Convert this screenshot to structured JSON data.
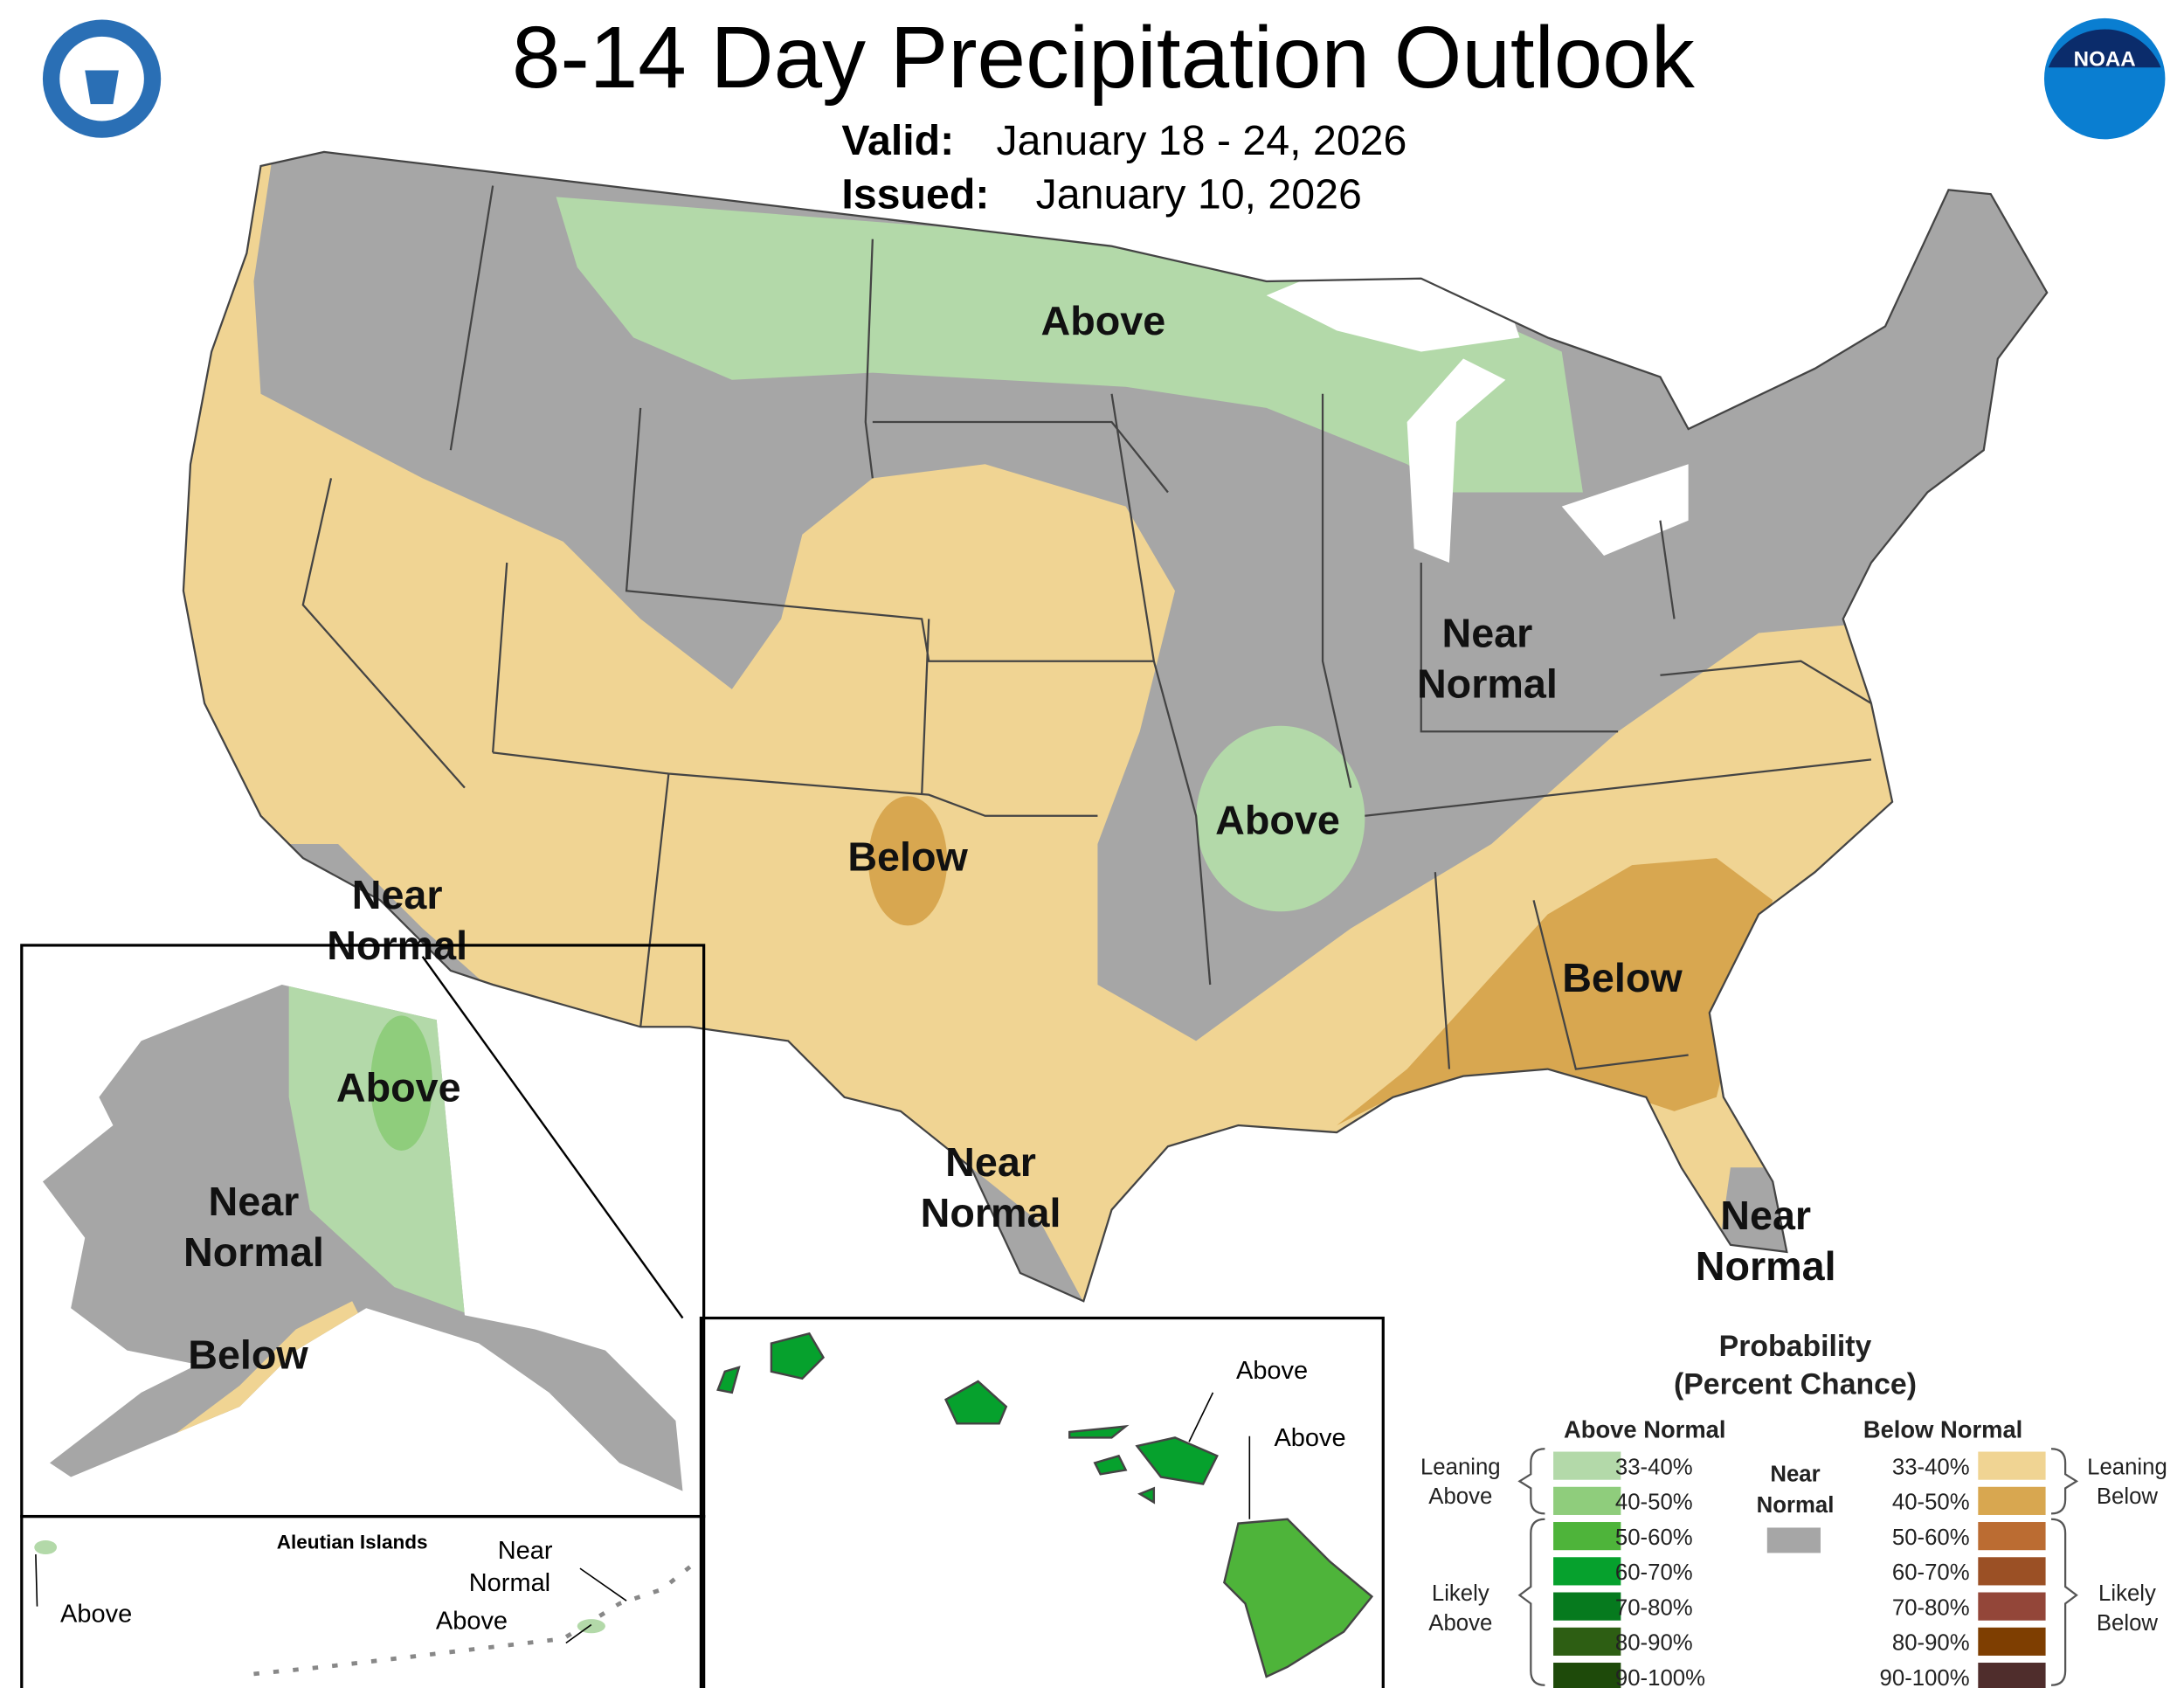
{
  "header": {
    "title": "8-14 Day Precipitation Outlook",
    "valid_label": "Valid:",
    "valid": "January 18 - 24, 2026",
    "issued_label": "Issued:",
    "issued": "January 10, 2026"
  },
  "logos": {
    "noaa": "NOAA"
  },
  "conus_labels": [
    {
      "lines": [
        "Above"
      ]
    },
    {
      "lines": [
        "Near",
        "Normal"
      ]
    },
    {
      "lines": [
        "Above"
      ]
    },
    {
      "lines": [
        "Below"
      ]
    },
    {
      "lines": [
        "Near",
        "Normal"
      ]
    },
    {
      "lines": [
        "Below"
      ]
    },
    {
      "lines": [
        "Near",
        "Normal"
      ]
    },
    {
      "lines": [
        "Near",
        "Normal"
      ]
    }
  ],
  "alaska_labels": [
    {
      "lines": [
        "Above"
      ]
    },
    {
      "lines": [
        "Near",
        "Normal"
      ]
    },
    {
      "lines": [
        "Below"
      ]
    }
  ],
  "aleutians": {
    "title": "Aleutian Islands",
    "labels": [
      {
        "lines": [
          "Near",
          "Normal"
        ]
      },
      {
        "lines": [
          "Above"
        ]
      },
      {
        "lines": [
          "Above"
        ]
      }
    ]
  },
  "hawaii_labels": [
    {
      "lines": [
        "Above"
      ]
    },
    {
      "lines": [
        "Above"
      ]
    }
  ],
  "legend": {
    "title": [
      "Probability",
      "(Percent Chance)"
    ],
    "above": {
      "heading": "Above Normal",
      "ranges": [
        "33-40%",
        "40-50%",
        "50-60%",
        "60-70%",
        "70-80%",
        "80-90%",
        "90-100%"
      ],
      "colors": [
        "#b3d9a9",
        "#8fcd7c",
        "#4eb43a",
        "#06a12d",
        "#067a1e",
        "#2d5e13",
        "#1e4a0a"
      ]
    },
    "below": {
      "heading": "Below Normal",
      "ranges": [
        "33-40%",
        "40-50%",
        "50-60%",
        "60-70%",
        "70-80%",
        "80-90%",
        "90-100%"
      ],
      "colors": [
        "#f0d493",
        "#d8a750",
        "#bb6c32",
        "#9b5025",
        "#934639",
        "#7e3e01",
        "#4f2d2c"
      ]
    },
    "near": {
      "lines": [
        "Near",
        "Normal"
      ],
      "color": "#a6a6a6"
    },
    "brackets": {
      "leaning_above": [
        "Leaning",
        "Above"
      ],
      "likely_above": [
        "Likely",
        "Above"
      ],
      "leaning_below": [
        "Leaning",
        "Below"
      ],
      "likely_below": [
        "Likely",
        "Below"
      ]
    }
  }
}
